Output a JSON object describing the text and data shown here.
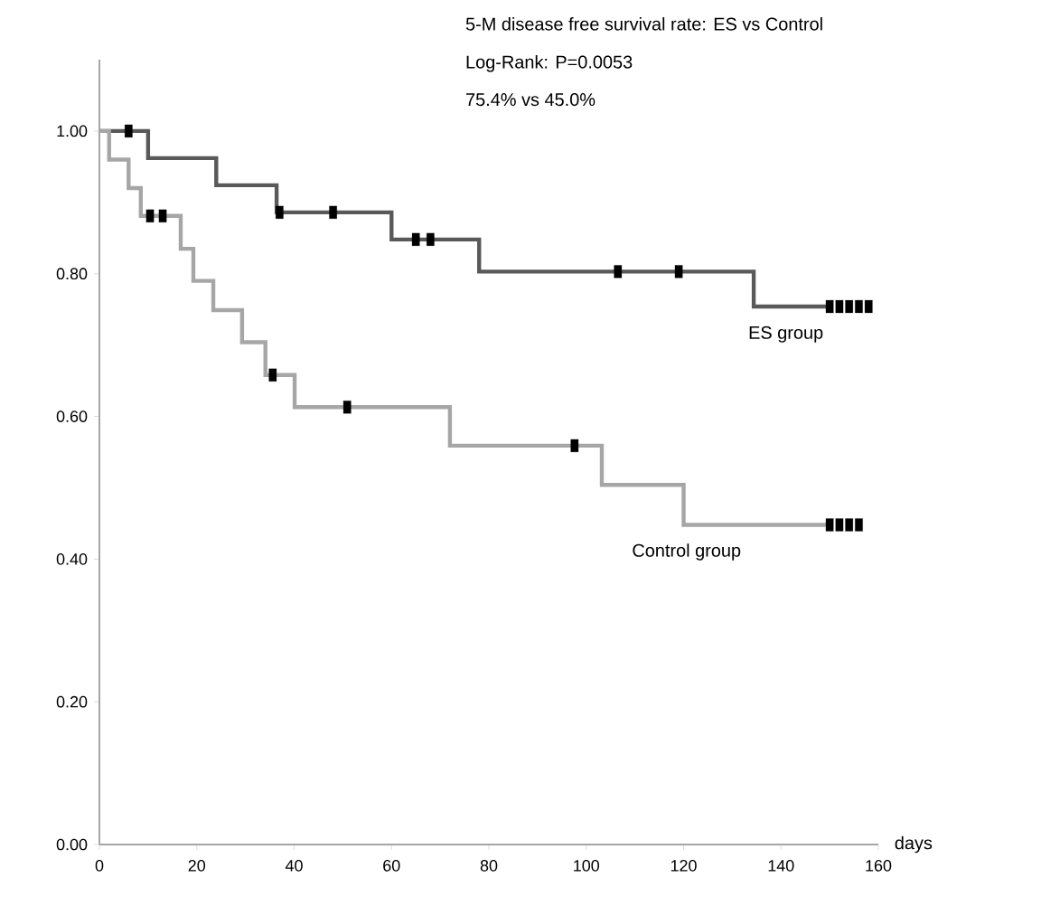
{
  "chart_data": {
    "type": "step",
    "title": "5-M disease free survival rate: ES vs Control",
    "annotations": [
      "Log-Rank: P=0.0053",
      "75.4% vs 45.0%"
    ],
    "xlabel": "days",
    "series": [
      {
        "name": "ES group",
        "color": "#595959",
        "x": [
          0,
          10,
          24,
          36.4,
          60,
          78,
          134.4,
          150
        ],
        "values": [
          1.0,
          0.962,
          0.924,
          0.886,
          0.848,
          0.803,
          0.754,
          0.754
        ]
      },
      {
        "name": "Control group",
        "color": "#a6a6a6",
        "x": [
          0,
          2,
          6,
          8.5,
          16.7,
          19.3,
          23.4,
          29.3,
          34.1,
          40.1,
          72,
          103.2,
          120,
          150
        ],
        "values": [
          1.0,
          0.96,
          0.92,
          0.881,
          0.835,
          0.79,
          0.749,
          0.704,
          0.658,
          0.613,
          0.559,
          0.504,
          0.448,
          0.448
        ]
      },
      {
        "type": "scatter",
        "color": "#000000",
        "x": [
          6,
          37,
          48,
          65,
          68,
          106.5,
          119,
          150,
          152,
          154,
          156,
          158
        ],
        "values": [
          1.0,
          0.886,
          0.886,
          0.848,
          0.848,
          0.803,
          0.803,
          0.754,
          0.754,
          0.754,
          0.754,
          0.754
        ]
      },
      {
        "type": "scatter",
        "color": "#000000",
        "x": [
          10.4,
          13,
          35.6,
          50.9,
          97.6,
          150,
          152,
          154,
          156
        ],
        "values": [
          0.881,
          0.881,
          0.658,
          0.613,
          0.559,
          0.448,
          0.448,
          0.448,
          0.448
        ]
      }
    ],
    "xlim": [
      0,
      160
    ],
    "xticks": [
      0,
      20,
      40,
      60,
      80,
      100,
      120,
      140,
      160
    ],
    "ylim": [
      0,
      1.1
    ],
    "yticks": [
      {
        "value": 0,
        "label": "0.00"
      },
      {
        "value": 0.2,
        "label": "0.20"
      },
      {
        "value": 0.4,
        "label": "0.40"
      },
      {
        "value": 0.6,
        "label": "0.60"
      },
      {
        "value": 0.8,
        "label": "0.80"
      },
      {
        "value": 1.0,
        "label": "1.00"
      }
    ],
    "grid": false
  }
}
